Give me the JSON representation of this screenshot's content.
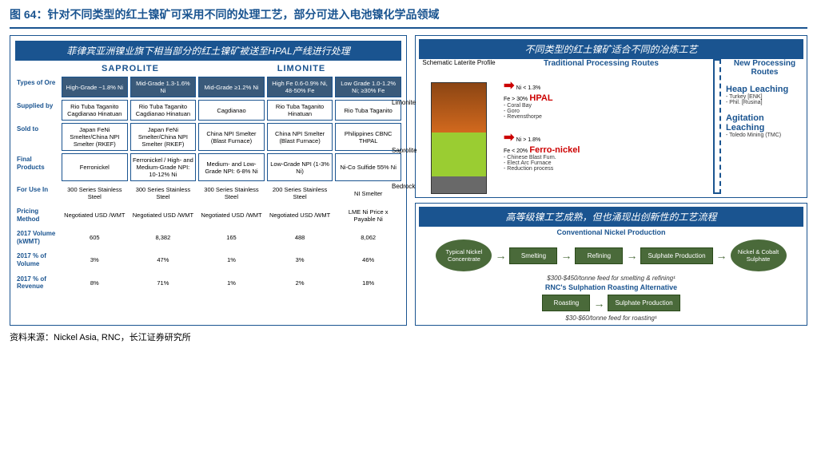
{
  "title": "图 64：针对不同类型的红土镍矿可采用不同的处理工艺，部分可进入电池镍化学品领域",
  "source": "资料来源：Nickel Asia, RNC，长江证券研究所",
  "left": {
    "banner": "菲律宾亚洲镍业旗下相当部分的红土镍矿被送至HPAL产线进行处理",
    "headers": {
      "sap": "SAPROLITE",
      "lim": "LIMONITE"
    },
    "labels": [
      "Types of Ore",
      "Supplied by",
      "Sold to",
      "Final Products",
      "For Use In",
      "Pricing Method",
      "2017 Volume (kWMT)",
      "2017 % of Volume",
      "2017 % of Revenue"
    ],
    "rows": [
      [
        "High-Grade ~1.8% Ni",
        "Mid-Grade 1.3-1.6% Ni",
        "Mid-Grade ≥1.2% Ni",
        "High Fe 0.6-0.9% Ni, 48-50% Fe",
        "Low Grade 1.0-1.2% Ni; ≥30% Fe"
      ],
      [
        "Rio Tuba Taganito Cagdianao Hinatuan",
        "Rio Tuba Taganito Cagdianao Hinatuan",
        "Cagdianao",
        "Rio Tuba Taganito Hinatuan",
        "Rio Tuba Taganito"
      ],
      [
        "Japan FeNi Smelter/China NPI Smelter (RKEF)",
        "Japan FeNi Smelter/China NPI Smelter (RKEF)",
        "China NPI Smelter (Blast Furnace)",
        "China NPI Smelter (Blast Furnace)",
        "Philippines CBNC THPAL"
      ],
      [
        "Ferronickel",
        "Ferronickel / High- and Medium-Grade NPI: 10-12% Ni",
        "Medium- and Low-Grade NPI: 6-8% Ni",
        "Low-Grade NPI (1-3% Ni)",
        "Ni-Co Sulfide 55% Ni"
      ],
      [
        "300 Series Stainless Steel",
        "300 Series Stainless Steel",
        "300 Series Stainless Steel",
        "200 Series Stainless Steel",
        "NI Smelter"
      ],
      [
        "Negotiated USD /WMT",
        "Negotiated USD /WMT",
        "Negotiated USD /WMT",
        "Negotiated USD /WMT",
        "LME Ni Price x Payable Ni"
      ],
      [
        "605",
        "8,382",
        "165",
        "488",
        "8,062"
      ],
      [
        "3%",
        "47%",
        "1%",
        "3%",
        "46%"
      ],
      [
        "8%",
        "71%",
        "1%",
        "2%",
        "18%"
      ]
    ]
  },
  "top": {
    "banner": "不同类型的红土镍矿适合不同的冶炼工艺",
    "schematic": "Schematic Laterite Profile",
    "layers": {
      "limo": "Limonite",
      "sap": "Saprolite",
      "bed": "Bedrock"
    },
    "trad": "Traditional Processing Routes",
    "new": "New Processing Routes",
    "hpal": {
      "name": "HPAL",
      "cond": "Ni < 1.3%\nFe > 30%",
      "items": [
        "- Coral Bay",
        "- Goro",
        "- Revensthorpe"
      ]
    },
    "feni": {
      "name": "Ferro-nickel",
      "cond": "Ni > 1.8%\nFe < 20%",
      "items": [
        "- Chinese Blast Furn.",
        "- Elect Arc Furnace",
        "- Reduction process"
      ]
    },
    "heap": {
      "name": "Heap Leaching",
      "items": [
        "- Turkey [ENK]",
        "- Phil. [Rusina]"
      ]
    },
    "agit": {
      "name": "Agitation Leaching",
      "items": [
        "- Toledo Mining (TMC)"
      ]
    }
  },
  "bot": {
    "banner": "高等级镍工艺成熟，但也涌现出创新性的工艺流程",
    "conv": "Conventional Nickel Production",
    "rnc": "RNC's Sulphation Roasting Alternative",
    "typical": "Typical Nickel Concentrate",
    "smelt": "Smelting",
    "refine": "Refining",
    "sulph": "Sulphate Production",
    "roast": "Roasting",
    "out": "Nickel & Cobalt Sulphate",
    "cost1": "$300-$450/tonne feed for smelting & refining¹",
    "cost2": "$30-$60/tonne feed for roasting¹"
  }
}
